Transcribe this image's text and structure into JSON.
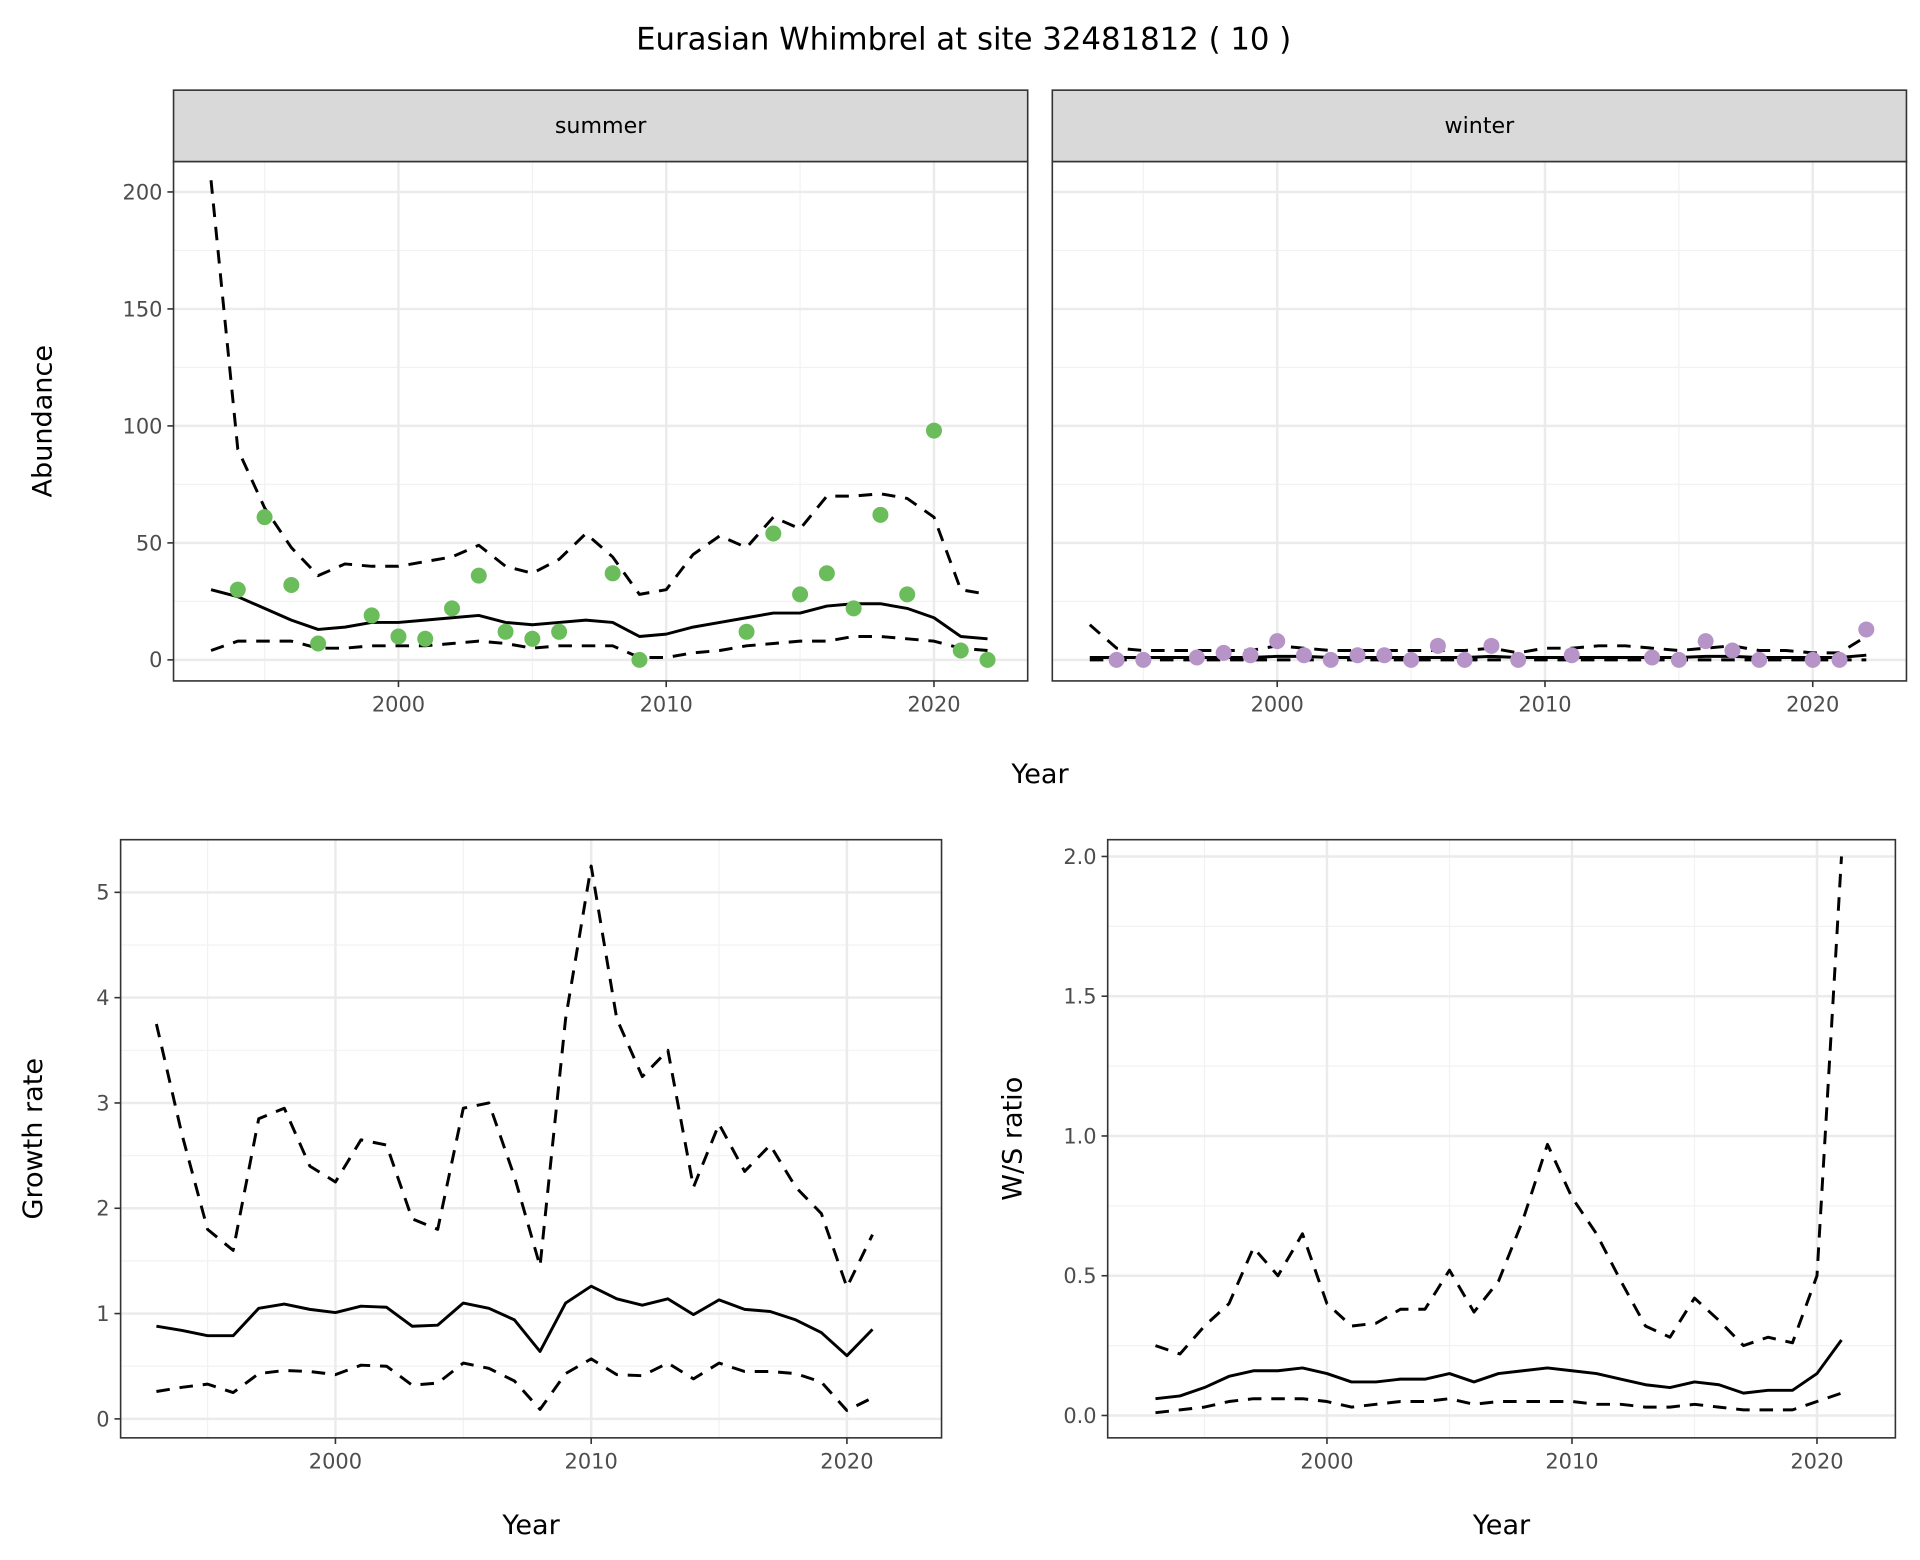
{
  "title": "Eurasian Whimbrel at site 32481812 ( 10 )",
  "chart_data": [
    {
      "type": "line",
      "facet": "summer",
      "xlabel": "Year",
      "ylabel": "Abundance",
      "xlim": [
        1991.6,
        2023.5
      ],
      "ylim": [
        -9,
        213
      ],
      "xticks": [
        2000,
        2010,
        2020
      ],
      "yticks": [
        0,
        50,
        100,
        150,
        200
      ],
      "point_color": "#6ABD5A",
      "points": {
        "x": [
          1994,
          1995,
          1996,
          1997,
          1999,
          2000,
          2001,
          2002,
          2003,
          2004,
          2005,
          2006,
          2008,
          2009,
          2013,
          2014,
          2015,
          2016,
          2017,
          2018,
          2019,
          2020,
          2021,
          2022
        ],
        "y": [
          30,
          61,
          32,
          7,
          19,
          10,
          9,
          22,
          36,
          12,
          9,
          12,
          37,
          0,
          12,
          54,
          28,
          37,
          22,
          62,
          28,
          98,
          4,
          0
        ]
      },
      "x": [
        1993,
        1994,
        1995,
        1996,
        1997,
        1998,
        1999,
        2000,
        2001,
        2002,
        2003,
        2004,
        2005,
        2006,
        2007,
        2008,
        2009,
        2010,
        2011,
        2012,
        2013,
        2014,
        2015,
        2016,
        2017,
        2018,
        2019,
        2020,
        2021,
        2022
      ],
      "series": [
        {
          "name": "mean",
          "style": "solid",
          "values": [
            30,
            27,
            22,
            17,
            13,
            14,
            16,
            16,
            17,
            18,
            19,
            16,
            15,
            16,
            17,
            16,
            10,
            11,
            14,
            16,
            18,
            20,
            20,
            23,
            24,
            24,
            22,
            18,
            10,
            9
          ]
        },
        {
          "name": "upper",
          "style": "dashed",
          "values": [
            205,
            90,
            65,
            48,
            36,
            41,
            40,
            40,
            42,
            44,
            49,
            40,
            37,
            43,
            54,
            44,
            28,
            30,
            45,
            53,
            48,
            61,
            56,
            70,
            70,
            71,
            69,
            61,
            30,
            28
          ]
        },
        {
          "name": "lower",
          "style": "dashed",
          "values": [
            4,
            8,
            8,
            8,
            5,
            5,
            6,
            6,
            6,
            7,
            8,
            7,
            5,
            6,
            6,
            6,
            1,
            1,
            3,
            4,
            6,
            7,
            8,
            8,
            10,
            10,
            9,
            8,
            5,
            4
          ]
        }
      ]
    },
    {
      "type": "line",
      "facet": "winter",
      "xlabel": "Year",
      "xlim": [
        1991.6,
        2023.5
      ],
      "ylim": [
        -9,
        213
      ],
      "xticks": [
        2000,
        2010,
        2020
      ],
      "point_color": "#B794C8",
      "points": {
        "x": [
          1994,
          1995,
          1997,
          1998,
          1999,
          2000,
          2001,
          2002,
          2003,
          2004,
          2005,
          2006,
          2007,
          2008,
          2009,
          2011,
          2014,
          2015,
          2016,
          2017,
          2018,
          2020,
          2021,
          2022
        ],
        "y": [
          0,
          0,
          1,
          3,
          2,
          8,
          2,
          0,
          2,
          2,
          0,
          6,
          0,
          6,
          0,
          2,
          1,
          0,
          8,
          4,
          0,
          0,
          0,
          13
        ]
      },
      "x": [
        1993,
        1994,
        1995,
        1996,
        1997,
        1998,
        1999,
        2000,
        2001,
        2002,
        2003,
        2004,
        2005,
        2006,
        2007,
        2008,
        2009,
        2010,
        2011,
        2012,
        2013,
        2014,
        2015,
        2016,
        2017,
        2018,
        2019,
        2020,
        2021,
        2022
      ],
      "series": [
        {
          "name": "mean",
          "style": "solid",
          "values": [
            1,
            1,
            1,
            1,
            1,
            1,
            1,
            1.5,
            1.5,
            1,
            1,
            1,
            1,
            1,
            1,
            1.5,
            1,
            1,
            1,
            1,
            1,
            1,
            1,
            1.5,
            1.5,
            1,
            1,
            1,
            1,
            2
          ]
        },
        {
          "name": "upper",
          "style": "dashed",
          "values": [
            15,
            5,
            4,
            4,
            4,
            4,
            4,
            6,
            5,
            4,
            4,
            4,
            4,
            4,
            4,
            5,
            3,
            5,
            5,
            6,
            6,
            5,
            4,
            5,
            6,
            4,
            4,
            3,
            3,
            10
          ]
        },
        {
          "name": "lower",
          "style": "dashed",
          "values": [
            0,
            0,
            0,
            0,
            0,
            0,
            0,
            0,
            0,
            0,
            0,
            0,
            0,
            0,
            0,
            0,
            0,
            0,
            0,
            0,
            0,
            0,
            0,
            0,
            0,
            0,
            0,
            0,
            0,
            0
          ]
        }
      ]
    },
    {
      "type": "line",
      "xlabel": "Year",
      "ylabel": "Growth rate",
      "xlim": [
        1991.6,
        2023.7
      ],
      "ylim": [
        -0.18,
        5.5
      ],
      "xticks": [
        2000,
        2010,
        2020
      ],
      "yticks": [
        0,
        1,
        2,
        3,
        4,
        5
      ],
      "x": [
        1993,
        1994,
        1995,
        1996,
        1997,
        1998,
        1999,
        2000,
        2001,
        2002,
        2003,
        2004,
        2005,
        2006,
        2007,
        2008,
        2009,
        2010,
        2011,
        2012,
        2013,
        2014,
        2015,
        2016,
        2017,
        2018,
        2019,
        2020,
        2021
      ],
      "series": [
        {
          "name": "mean",
          "style": "solid",
          "values": [
            0.88,
            0.84,
            0.79,
            0.79,
            1.05,
            1.09,
            1.04,
            1.01,
            1.07,
            1.06,
            0.88,
            0.89,
            1.1,
            1.05,
            0.94,
            0.64,
            1.1,
            1.26,
            1.14,
            1.08,
            1.14,
            0.99,
            1.13,
            1.04,
            1.02,
            0.94,
            0.82,
            0.6,
            0.85
          ]
        },
        {
          "name": "upper",
          "style": "dashed",
          "values": [
            3.75,
            2.7,
            1.8,
            1.6,
            2.85,
            2.95,
            2.4,
            2.25,
            2.65,
            2.6,
            1.9,
            1.8,
            2.95,
            3.0,
            2.3,
            1.45,
            3.8,
            5.25,
            3.8,
            3.25,
            3.5,
            2.2,
            2.8,
            2.35,
            2.6,
            2.2,
            1.95,
            1.25,
            1.75
          ]
        },
        {
          "name": "lower",
          "style": "dashed",
          "values": [
            0.26,
            0.3,
            0.33,
            0.25,
            0.43,
            0.46,
            0.45,
            0.42,
            0.51,
            0.5,
            0.32,
            0.34,
            0.53,
            0.48,
            0.36,
            0.09,
            0.43,
            0.57,
            0.42,
            0.41,
            0.53,
            0.38,
            0.53,
            0.45,
            0.45,
            0.43,
            0.35,
            0.08,
            0.2
          ]
        }
      ]
    },
    {
      "type": "line",
      "xlabel": "Year",
      "ylabel": "W/S ratio",
      "xlim": [
        1991.05,
        2023.2
      ],
      "ylim": [
        -0.08,
        2.06
      ],
      "xticks": [
        2000,
        2010,
        2020
      ],
      "yticks": [
        "0.0",
        "0.5",
        "1.0",
        "1.5",
        "2.0"
      ],
      "x": [
        1993,
        1994,
        1995,
        1996,
        1997,
        1998,
        1999,
        2000,
        2001,
        2002,
        2003,
        2004,
        2005,
        2006,
        2007,
        2008,
        2009,
        2010,
        2011,
        2012,
        2013,
        2014,
        2015,
        2016,
        2017,
        2018,
        2019,
        2020,
        2021
      ],
      "series": [
        {
          "name": "mean",
          "style": "solid",
          "values": [
            0.06,
            0.07,
            0.1,
            0.14,
            0.16,
            0.16,
            0.17,
            0.15,
            0.12,
            0.12,
            0.13,
            0.13,
            0.15,
            0.12,
            0.15,
            0.16,
            0.17,
            0.16,
            0.15,
            0.13,
            0.11,
            0.1,
            0.12,
            0.11,
            0.08,
            0.09,
            0.09,
            0.15,
            0.27
          ]
        },
        {
          "name": "upper",
          "style": "dashed",
          "values": [
            0.25,
            0.22,
            0.32,
            0.4,
            0.6,
            0.5,
            0.65,
            0.4,
            0.32,
            0.33,
            0.38,
            0.38,
            0.52,
            0.37,
            0.48,
            0.7,
            0.97,
            0.78,
            0.65,
            0.48,
            0.32,
            0.28,
            0.42,
            0.34,
            0.25,
            0.28,
            0.26,
            0.5,
            2.0
          ]
        },
        {
          "name": "lower",
          "style": "dashed",
          "values": [
            0.01,
            0.02,
            0.03,
            0.05,
            0.06,
            0.06,
            0.06,
            0.05,
            0.03,
            0.04,
            0.05,
            0.05,
            0.06,
            0.04,
            0.05,
            0.05,
            0.05,
            0.05,
            0.04,
            0.04,
            0.03,
            0.03,
            0.04,
            0.03,
            0.02,
            0.02,
            0.02,
            0.05,
            0.08
          ]
        }
      ]
    }
  ]
}
